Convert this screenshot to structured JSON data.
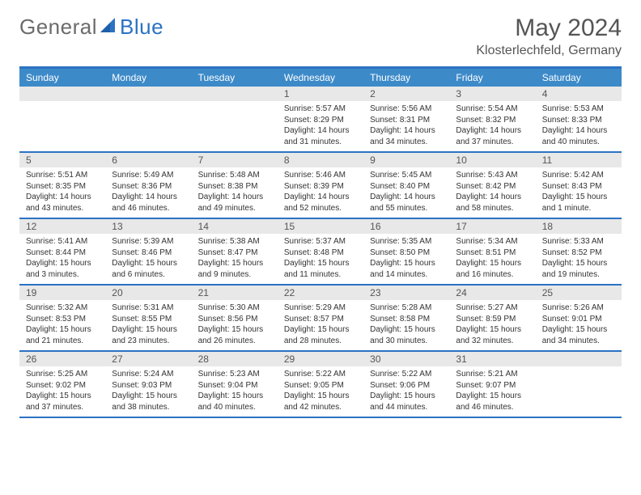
{
  "logo": {
    "text1": "General",
    "text2": "Blue"
  },
  "title": "May 2024",
  "location": "Klosterlechfeld, Germany",
  "colors": {
    "accent": "#2b72c4",
    "header_bg": "#3d8ac9",
    "daynum_bg": "#e8e8e8",
    "text": "#333333",
    "title_text": "#555555"
  },
  "day_names": [
    "Sunday",
    "Monday",
    "Tuesday",
    "Wednesday",
    "Thursday",
    "Friday",
    "Saturday"
  ],
  "weeks": [
    [
      {
        "day": "",
        "lines": []
      },
      {
        "day": "",
        "lines": []
      },
      {
        "day": "",
        "lines": []
      },
      {
        "day": "1",
        "lines": [
          "Sunrise: 5:57 AM",
          "Sunset: 8:29 PM",
          "Daylight: 14 hours",
          "and 31 minutes."
        ]
      },
      {
        "day": "2",
        "lines": [
          "Sunrise: 5:56 AM",
          "Sunset: 8:31 PM",
          "Daylight: 14 hours",
          "and 34 minutes."
        ]
      },
      {
        "day": "3",
        "lines": [
          "Sunrise: 5:54 AM",
          "Sunset: 8:32 PM",
          "Daylight: 14 hours",
          "and 37 minutes."
        ]
      },
      {
        "day": "4",
        "lines": [
          "Sunrise: 5:53 AM",
          "Sunset: 8:33 PM",
          "Daylight: 14 hours",
          "and 40 minutes."
        ]
      }
    ],
    [
      {
        "day": "5",
        "lines": [
          "Sunrise: 5:51 AM",
          "Sunset: 8:35 PM",
          "Daylight: 14 hours",
          "and 43 minutes."
        ]
      },
      {
        "day": "6",
        "lines": [
          "Sunrise: 5:49 AM",
          "Sunset: 8:36 PM",
          "Daylight: 14 hours",
          "and 46 minutes."
        ]
      },
      {
        "day": "7",
        "lines": [
          "Sunrise: 5:48 AM",
          "Sunset: 8:38 PM",
          "Daylight: 14 hours",
          "and 49 minutes."
        ]
      },
      {
        "day": "8",
        "lines": [
          "Sunrise: 5:46 AM",
          "Sunset: 8:39 PM",
          "Daylight: 14 hours",
          "and 52 minutes."
        ]
      },
      {
        "day": "9",
        "lines": [
          "Sunrise: 5:45 AM",
          "Sunset: 8:40 PM",
          "Daylight: 14 hours",
          "and 55 minutes."
        ]
      },
      {
        "day": "10",
        "lines": [
          "Sunrise: 5:43 AM",
          "Sunset: 8:42 PM",
          "Daylight: 14 hours",
          "and 58 minutes."
        ]
      },
      {
        "day": "11",
        "lines": [
          "Sunrise: 5:42 AM",
          "Sunset: 8:43 PM",
          "Daylight: 15 hours",
          "and 1 minute."
        ]
      }
    ],
    [
      {
        "day": "12",
        "lines": [
          "Sunrise: 5:41 AM",
          "Sunset: 8:44 PM",
          "Daylight: 15 hours",
          "and 3 minutes."
        ]
      },
      {
        "day": "13",
        "lines": [
          "Sunrise: 5:39 AM",
          "Sunset: 8:46 PM",
          "Daylight: 15 hours",
          "and 6 minutes."
        ]
      },
      {
        "day": "14",
        "lines": [
          "Sunrise: 5:38 AM",
          "Sunset: 8:47 PM",
          "Daylight: 15 hours",
          "and 9 minutes."
        ]
      },
      {
        "day": "15",
        "lines": [
          "Sunrise: 5:37 AM",
          "Sunset: 8:48 PM",
          "Daylight: 15 hours",
          "and 11 minutes."
        ]
      },
      {
        "day": "16",
        "lines": [
          "Sunrise: 5:35 AM",
          "Sunset: 8:50 PM",
          "Daylight: 15 hours",
          "and 14 minutes."
        ]
      },
      {
        "day": "17",
        "lines": [
          "Sunrise: 5:34 AM",
          "Sunset: 8:51 PM",
          "Daylight: 15 hours",
          "and 16 minutes."
        ]
      },
      {
        "day": "18",
        "lines": [
          "Sunrise: 5:33 AM",
          "Sunset: 8:52 PM",
          "Daylight: 15 hours",
          "and 19 minutes."
        ]
      }
    ],
    [
      {
        "day": "19",
        "lines": [
          "Sunrise: 5:32 AM",
          "Sunset: 8:53 PM",
          "Daylight: 15 hours",
          "and 21 minutes."
        ]
      },
      {
        "day": "20",
        "lines": [
          "Sunrise: 5:31 AM",
          "Sunset: 8:55 PM",
          "Daylight: 15 hours",
          "and 23 minutes."
        ]
      },
      {
        "day": "21",
        "lines": [
          "Sunrise: 5:30 AM",
          "Sunset: 8:56 PM",
          "Daylight: 15 hours",
          "and 26 minutes."
        ]
      },
      {
        "day": "22",
        "lines": [
          "Sunrise: 5:29 AM",
          "Sunset: 8:57 PM",
          "Daylight: 15 hours",
          "and 28 minutes."
        ]
      },
      {
        "day": "23",
        "lines": [
          "Sunrise: 5:28 AM",
          "Sunset: 8:58 PM",
          "Daylight: 15 hours",
          "and 30 minutes."
        ]
      },
      {
        "day": "24",
        "lines": [
          "Sunrise: 5:27 AM",
          "Sunset: 8:59 PM",
          "Daylight: 15 hours",
          "and 32 minutes."
        ]
      },
      {
        "day": "25",
        "lines": [
          "Sunrise: 5:26 AM",
          "Sunset: 9:01 PM",
          "Daylight: 15 hours",
          "and 34 minutes."
        ]
      }
    ],
    [
      {
        "day": "26",
        "lines": [
          "Sunrise: 5:25 AM",
          "Sunset: 9:02 PM",
          "Daylight: 15 hours",
          "and 37 minutes."
        ]
      },
      {
        "day": "27",
        "lines": [
          "Sunrise: 5:24 AM",
          "Sunset: 9:03 PM",
          "Daylight: 15 hours",
          "and 38 minutes."
        ]
      },
      {
        "day": "28",
        "lines": [
          "Sunrise: 5:23 AM",
          "Sunset: 9:04 PM",
          "Daylight: 15 hours",
          "and 40 minutes."
        ]
      },
      {
        "day": "29",
        "lines": [
          "Sunrise: 5:22 AM",
          "Sunset: 9:05 PM",
          "Daylight: 15 hours",
          "and 42 minutes."
        ]
      },
      {
        "day": "30",
        "lines": [
          "Sunrise: 5:22 AM",
          "Sunset: 9:06 PM",
          "Daylight: 15 hours",
          "and 44 minutes."
        ]
      },
      {
        "day": "31",
        "lines": [
          "Sunrise: 5:21 AM",
          "Sunset: 9:07 PM",
          "Daylight: 15 hours",
          "and 46 minutes."
        ]
      },
      {
        "day": "",
        "lines": []
      }
    ]
  ]
}
